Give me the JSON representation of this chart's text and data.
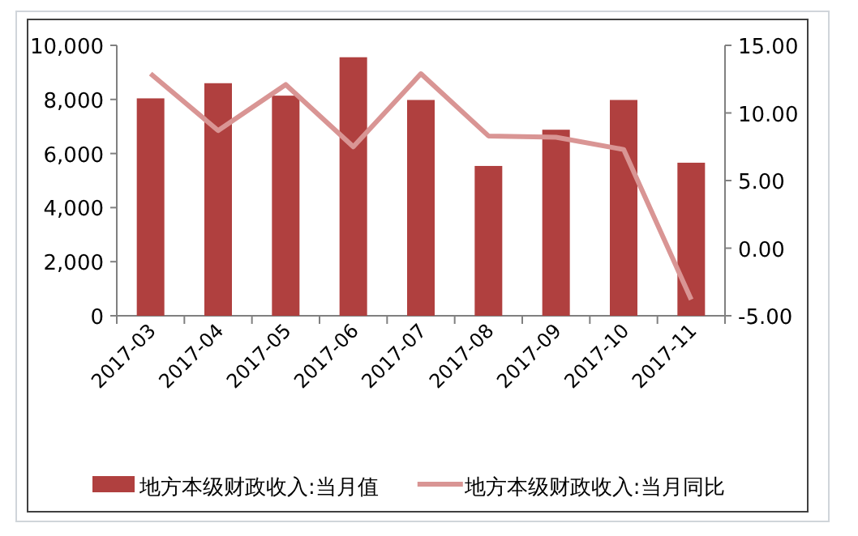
{
  "chart_data": {
    "type": "bar",
    "categories": [
      "2017-03",
      "2017-04",
      "2017-05",
      "2017-06",
      "2017-07",
      "2017-08",
      "2017-09",
      "2017-10",
      "2017-11"
    ],
    "series": [
      {
        "name": "地方本级财政收入:当月值",
        "color": "#b0403f",
        "values": [
          8040,
          8600,
          8140,
          9560,
          7980,
          5540,
          6880,
          7980,
          5660
        ]
      },
      {
        "name": "地方本级财政收入:当月同比",
        "type": "line",
        "axis": "y2",
        "color": "#d99594",
        "values": [
          12.9,
          8.7,
          12.1,
          7.5,
          12.9,
          8.3,
          8.2,
          7.3,
          -3.8
        ]
      }
    ],
    "ylim": [
      0,
      10000
    ],
    "yticks": [
      0,
      {
        "value": 2000,
        "label": "2,000"
      },
      {
        "value": 4000,
        "label": "4,000"
      },
      {
        "value": 6000,
        "label": "6,000"
      },
      {
        "value": 8000,
        "label": "8,000"
      },
      {
        "value": 10000,
        "label": "10,000"
      }
    ],
    "y2lim": [
      -5,
      15
    ],
    "y2ticks": [
      {
        "value": -5,
        "label": "-5.00"
      },
      {
        "value": 0,
        "label": "0.00"
      },
      {
        "value": 5,
        "label": "5.00"
      },
      {
        "value": 10,
        "label": "10.00"
      },
      {
        "value": 15,
        "label": "15.00"
      }
    ],
    "grid": false,
    "legend": "bottom",
    "marker": "none"
  }
}
